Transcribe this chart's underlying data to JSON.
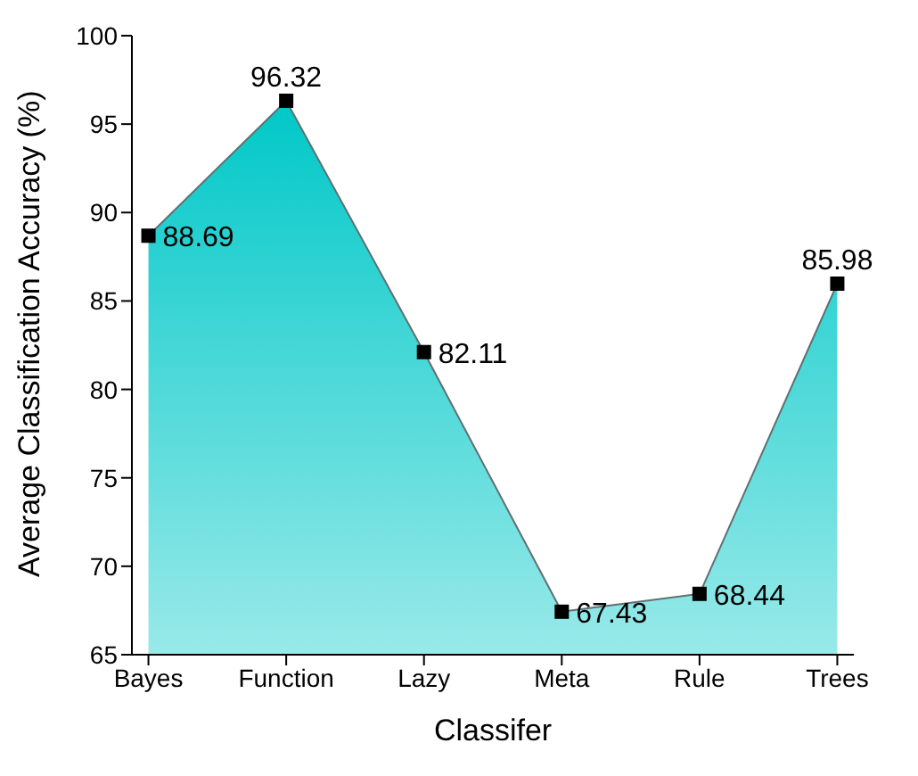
{
  "chart_data": {
    "type": "area",
    "xlabel": "Classifer",
    "ylabel": "Average Classification Accuracy (%)",
    "categories": [
      "Bayes",
      "Function",
      "Lazy",
      "Meta",
      "Rule",
      "Trees"
    ],
    "series": [
      {
        "color": "#00c8c8",
        "values": [
          88.69,
          96.32,
          82.11,
          67.43,
          68.44,
          85.98
        ]
      }
    ],
    "ylim": [
      65,
      100
    ],
    "yticks": [
      65,
      70,
      75,
      80,
      85,
      90,
      95,
      100
    ],
    "data_labels": true,
    "marker": "square",
    "grid": false,
    "legend": false
  }
}
